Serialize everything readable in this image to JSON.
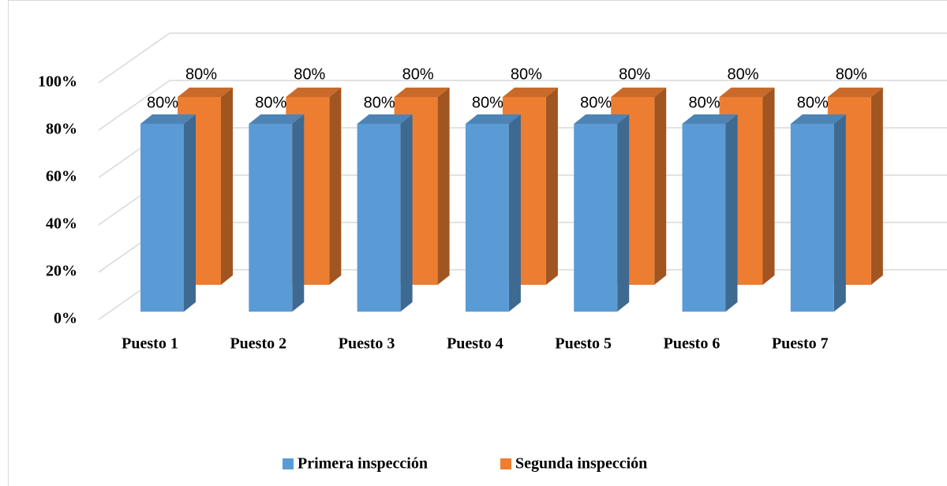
{
  "chart_data": {
    "type": "bar3d",
    "categories": [
      "Puesto 1",
      "Puesto 2",
      "Puesto 3",
      "Puesto 4",
      "Puesto 5",
      "Puesto 6",
      "Puesto 7"
    ],
    "series": [
      {
        "name": "Primera inspección",
        "color": "#5b9bd5",
        "values": [
          80,
          80,
          80,
          80,
          80,
          80,
          80
        ],
        "value_labels": [
          "80%",
          "80%",
          "80%",
          "80%",
          "80%",
          "80%",
          "80%"
        ]
      },
      {
        "name": "Segunda inspección",
        "color": "#ed7d31",
        "values": [
          80,
          80,
          80,
          80,
          80,
          80,
          80
        ],
        "value_labels": [
          "80%",
          "80%",
          "80%",
          "80%",
          "80%",
          "80%",
          "80%"
        ]
      }
    ],
    "ylim": [
      0,
      100
    ],
    "yticks": [
      {
        "value": 0,
        "label": "0%"
      },
      {
        "value": 20,
        "label": "20%"
      },
      {
        "value": 40,
        "label": "40%"
      },
      {
        "value": 60,
        "label": "60%"
      },
      {
        "value": 80,
        "label": "80%"
      },
      {
        "value": 100,
        "label": "100%"
      }
    ],
    "grid": true,
    "legend": "bottom"
  }
}
